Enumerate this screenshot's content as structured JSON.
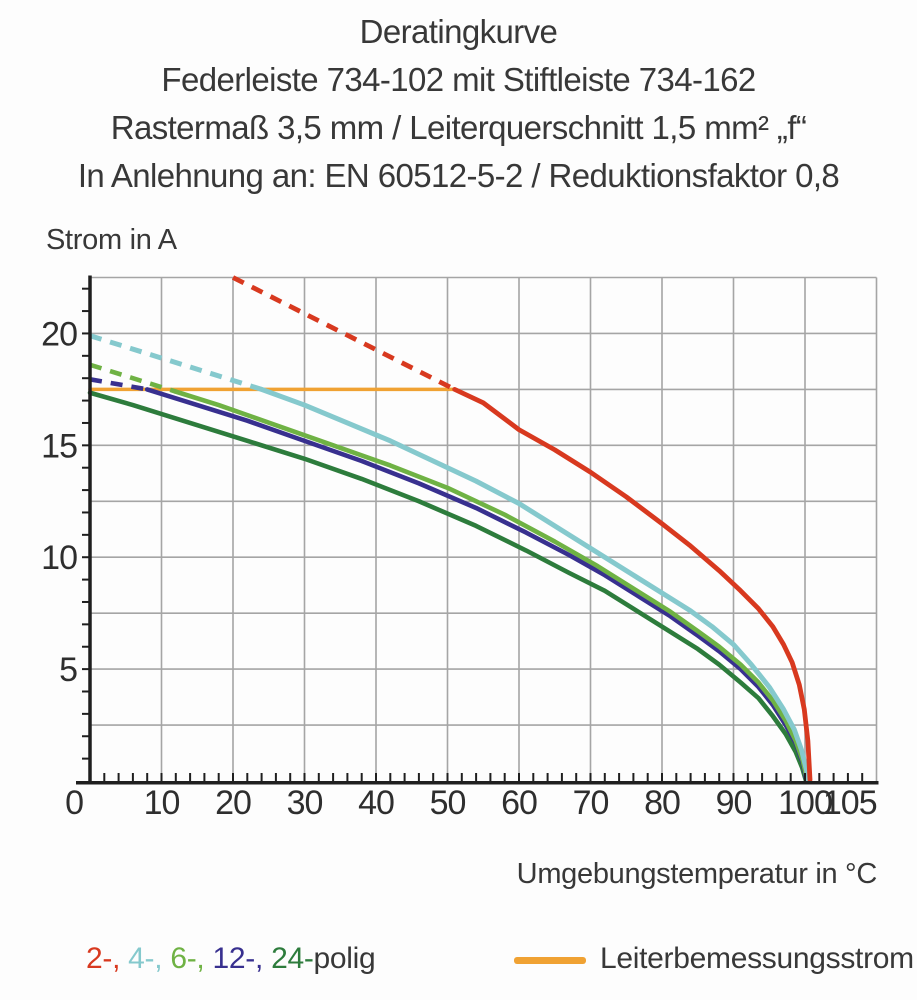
{
  "header": {
    "title": "Deratingkurve",
    "subtitle_product": "Federleiste 734-102 mit Stiftleiste 734-162",
    "subtitle_specs": "Rastermaß 3,5 mm / Leiterquerschnitt 1,5 mm² „f“",
    "subtitle_standard": "In Anlehnung an: EN 60512-5-2 / Reduktionsfaktor 0,8"
  },
  "chart_data": {
    "type": "line",
    "title": "Deratingkurve",
    "xlabel": "Umgebungstemperatur in °C",
    "ylabel": "Strom in A",
    "xlim": [
      0,
      110
    ],
    "ylim": [
      0,
      22.5
    ],
    "grid": true,
    "x_gridlines": [
      10,
      20,
      30,
      40,
      50,
      60,
      70,
      80,
      90,
      100,
      110
    ],
    "y_gridlines": [
      2.5,
      5,
      7.5,
      10,
      12.5,
      15,
      17.5,
      20,
      22.5
    ],
    "x_tick_labels": [
      {
        "v": 10,
        "t": "10"
      },
      {
        "v": 20,
        "t": "20"
      },
      {
        "v": 30,
        "t": "30"
      },
      {
        "v": 40,
        "t": "40"
      },
      {
        "v": 50,
        "t": "50"
      },
      {
        "v": 60,
        "t": "60"
      },
      {
        "v": 70,
        "t": "70"
      },
      {
        "v": 80,
        "t": "80"
      },
      {
        "v": 90,
        "t": "90"
      },
      {
        "v": 100,
        "t": "100"
      },
      {
        "v": 105,
        "t": "105",
        "nudge": 9
      }
    ],
    "y_tick_labels": [
      {
        "v": 5,
        "t": "5"
      },
      {
        "v": 10,
        "t": "10"
      },
      {
        "v": 15,
        "t": "15"
      },
      {
        "v": 20,
        "t": "20"
      }
    ],
    "origin_label": "0",
    "x_minor_tick_step": 2,
    "y_minor_tick_step": 1,
    "rated_current_A": 17.5,
    "colors": {
      "grid": "#a5a5a5",
      "axis": "#1f1f1f",
      "text": "#2e2e2e"
    },
    "series": [
      {
        "name": "Leiterbemessungsstrom",
        "color": "#f0a233",
        "width": 3.5,
        "dash": null,
        "points": [
          [
            0,
            17.5
          ],
          [
            51,
            17.5
          ]
        ]
      },
      {
        "name": "24-polig",
        "color": "#2d7c3c",
        "width": 4.6,
        "dash": null,
        "points": [
          [
            0,
            17.35
          ],
          [
            6,
            16.8
          ],
          [
            14,
            16.0
          ],
          [
            22,
            15.2
          ],
          [
            30,
            14.4
          ],
          [
            38,
            13.5
          ],
          [
            46,
            12.5
          ],
          [
            54,
            11.4
          ],
          [
            61,
            10.3
          ],
          [
            67,
            9.3
          ],
          [
            72,
            8.5
          ],
          [
            77,
            7.5
          ],
          [
            81,
            6.7
          ],
          [
            85,
            5.9
          ],
          [
            88,
            5.2
          ],
          [
            91,
            4.4
          ],
          [
            93.5,
            3.7
          ],
          [
            95.5,
            2.9
          ],
          [
            97.3,
            2.1
          ],
          [
            98.7,
            1.3
          ],
          [
            99.6,
            0.6
          ],
          [
            100.1,
            0.05
          ]
        ]
      },
      {
        "name": "12-polig",
        "color": "#38308f",
        "width": 4.6,
        "dash": [
          [
            0,
            17.95
          ],
          [
            8,
            17.5
          ]
        ],
        "points": [
          [
            8,
            17.5
          ],
          [
            14,
            16.9
          ],
          [
            22,
            16.1
          ],
          [
            30,
            15.2
          ],
          [
            38,
            14.3
          ],
          [
            46,
            13.3
          ],
          [
            54,
            12.2
          ],
          [
            61,
            11.1
          ],
          [
            67,
            10.1
          ],
          [
            72,
            9.2
          ],
          [
            77,
            8.2
          ],
          [
            81,
            7.4
          ],
          [
            85,
            6.5
          ],
          [
            88,
            5.8
          ],
          [
            91,
            5.0
          ],
          [
            93.5,
            4.2
          ],
          [
            95.5,
            3.4
          ],
          [
            97.3,
            2.5
          ],
          [
            98.7,
            1.7
          ],
          [
            99.7,
            0.8
          ],
          [
            100.2,
            0.05
          ]
        ]
      },
      {
        "name": "6-polig",
        "color": "#6fb244",
        "width": 4.6,
        "dash": [
          [
            0,
            18.6
          ],
          [
            12,
            17.4
          ]
        ],
        "points": [
          [
            12,
            17.4
          ],
          [
            18,
            16.8
          ],
          [
            26,
            15.9
          ],
          [
            34,
            15.0
          ],
          [
            42,
            14.1
          ],
          [
            50,
            13.1
          ],
          [
            58,
            11.9
          ],
          [
            65,
            10.7
          ],
          [
            71,
            9.6
          ],
          [
            76,
            8.6
          ],
          [
            81,
            7.6
          ],
          [
            85,
            6.7
          ],
          [
            88,
            6.0
          ],
          [
            91,
            5.2
          ],
          [
            93.5,
            4.4
          ],
          [
            95.5,
            3.6
          ],
          [
            97.3,
            2.7
          ],
          [
            98.7,
            1.8
          ],
          [
            99.7,
            0.9
          ],
          [
            100.3,
            0.05
          ]
        ]
      },
      {
        "name": "4-polig",
        "color": "#85c9cd",
        "width": 5.0,
        "dash": [
          [
            0,
            19.9
          ],
          [
            24,
            17.5
          ]
        ],
        "points": [
          [
            24,
            17.5
          ],
          [
            30,
            16.8
          ],
          [
            36,
            16.0
          ],
          [
            42,
            15.2
          ],
          [
            48,
            14.3
          ],
          [
            54,
            13.4
          ],
          [
            60,
            12.4
          ],
          [
            66,
            11.2
          ],
          [
            71,
            10.2
          ],
          [
            76,
            9.2
          ],
          [
            80,
            8.4
          ],
          [
            84,
            7.6
          ],
          [
            87,
            6.9
          ],
          [
            90,
            6.1
          ],
          [
            92.5,
            5.2
          ],
          [
            95,
            4.2
          ],
          [
            97,
            3.2
          ],
          [
            98.5,
            2.3
          ],
          [
            99.5,
            1.4
          ],
          [
            100.2,
            0.5
          ],
          [
            100.45,
            0.05
          ]
        ]
      },
      {
        "name": "2-polig",
        "color": "#d8391f",
        "width": 4.8,
        "dash": [
          [
            20,
            22.5
          ],
          [
            51,
            17.5
          ]
        ],
        "points": [
          [
            51,
            17.5
          ],
          [
            55,
            16.9
          ],
          [
            60,
            15.7
          ],
          [
            65,
            14.8
          ],
          [
            70,
            13.8
          ],
          [
            75,
            12.7
          ],
          [
            80,
            11.5
          ],
          [
            84,
            10.5
          ],
          [
            88,
            9.4
          ],
          [
            91,
            8.5
          ],
          [
            93.5,
            7.7
          ],
          [
            95.5,
            6.9
          ],
          [
            97,
            6.1
          ],
          [
            98.2,
            5.3
          ],
          [
            99.2,
            4.3
          ],
          [
            99.9,
            3.2
          ],
          [
            100.4,
            1.8
          ],
          [
            100.7,
            0.05
          ]
        ]
      }
    ]
  },
  "legend": {
    "items": [
      {
        "text": "2-,",
        "color": "#d8391f"
      },
      {
        "text": "4-,",
        "color": "#85c9cd"
      },
      {
        "text": "6-,",
        "color": "#6fb244"
      },
      {
        "text": "12-,",
        "color": "#38308f"
      },
      {
        "text": "24-",
        "color": "#2d7c3c"
      }
    ],
    "suffix": "polig",
    "rated_label": "Leiterbemessungsstrom",
    "rated_color": "#f0a233"
  }
}
